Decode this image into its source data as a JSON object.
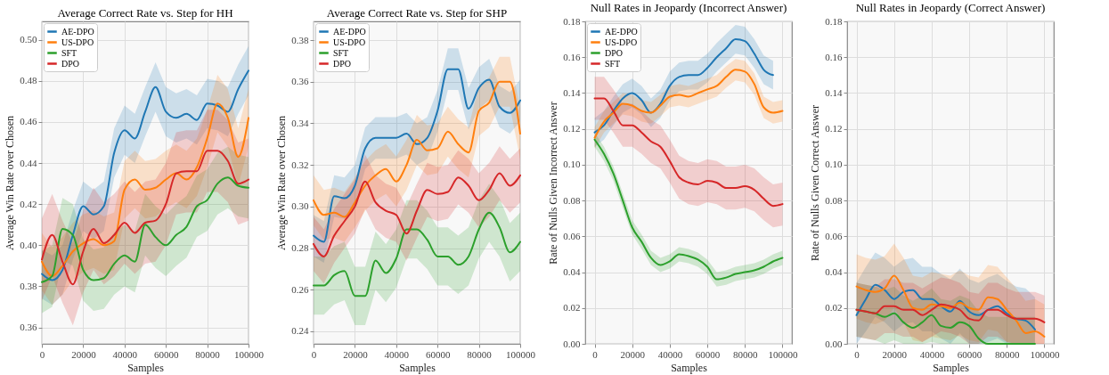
{
  "chart_data": [
    {
      "type": "line",
      "title": "Average Correct Rate vs. Step for HH",
      "xlabel": "Samples",
      "ylabel": "Average Win Rate over Chosen",
      "x": [
        0,
        5000,
        10000,
        15000,
        20000,
        25000,
        30000,
        35000,
        40000,
        45000,
        50000,
        55000,
        60000,
        65000,
        70000,
        75000,
        80000,
        85000,
        90000,
        95000,
        100000
      ],
      "xlim": [
        0,
        100000
      ],
      "xticks": [
        0,
        20000,
        40000,
        60000,
        80000,
        100000
      ],
      "ylim": [
        0.352,
        0.509
      ],
      "yticks": [
        0.36,
        0.38,
        {
          "value": 0.4,
          "label": "0.40"
        },
        0.42,
        0.44,
        0.46,
        0.48,
        {
          "value": 0.5,
          "label": "0.50"
        }
      ],
      "grid": true,
      "legend": "top left",
      "series": [
        {
          "name": "AE-DPO",
          "color": "#1f77b4",
          "values": [
            0.386,
            0.383,
            0.388,
            0.405,
            0.419,
            0.415,
            0.419,
            0.445,
            0.456,
            0.452,
            0.465,
            0.477,
            0.465,
            0.462,
            0.464,
            0.461,
            0.469,
            0.468,
            0.465,
            0.476,
            0.485
          ],
          "lower": [
            0.374,
            0.371,
            0.376,
            0.393,
            0.407,
            0.403,
            0.407,
            0.433,
            0.444,
            0.44,
            0.453,
            0.465,
            0.453,
            0.45,
            0.452,
            0.449,
            0.457,
            0.456,
            0.453,
            0.464,
            0.473
          ],
          "upper": [
            0.398,
            0.395,
            0.4,
            0.417,
            0.431,
            0.427,
            0.431,
            0.457,
            0.468,
            0.464,
            0.477,
            0.489,
            0.477,
            0.474,
            0.476,
            0.473,
            0.481,
            0.48,
            0.477,
            0.488,
            0.497
          ]
        },
        {
          "name": "US-DPO",
          "color": "#ff7f0e",
          "values": [
            0.392,
            0.385,
            0.39,
            0.397,
            0.401,
            0.403,
            0.4,
            0.402,
            0.427,
            0.432,
            0.427,
            0.428,
            0.432,
            0.435,
            0.432,
            0.438,
            0.452,
            0.469,
            0.462,
            0.443,
            0.462
          ],
          "lower": [
            0.378,
            0.371,
            0.376,
            0.383,
            0.387,
            0.389,
            0.386,
            0.388,
            0.413,
            0.418,
            0.413,
            0.414,
            0.418,
            0.421,
            0.418,
            0.424,
            0.438,
            0.455,
            0.448,
            0.429,
            0.448
          ],
          "upper": [
            0.406,
            0.399,
            0.404,
            0.411,
            0.415,
            0.417,
            0.414,
            0.416,
            0.441,
            0.446,
            0.441,
            0.442,
            0.446,
            0.449,
            0.446,
            0.452,
            0.466,
            0.483,
            0.476,
            0.457,
            0.476
          ]
        },
        {
          "name": "SFT",
          "color": "#2ca02c",
          "values": [
            0.382,
            0.385,
            0.408,
            0.405,
            0.388,
            0.383,
            0.384,
            0.391,
            0.395,
            0.392,
            0.41,
            0.404,
            0.4,
            0.405,
            0.409,
            0.419,
            0.422,
            0.43,
            0.433,
            0.429,
            0.428
          ],
          "lower": [
            0.367,
            0.37,
            0.393,
            0.39,
            0.373,
            0.368,
            0.369,
            0.376,
            0.38,
            0.377,
            0.395,
            0.389,
            0.385,
            0.39,
            0.394,
            0.404,
            0.407,
            0.415,
            0.418,
            0.414,
            0.413
          ],
          "upper": [
            0.397,
            0.4,
            0.423,
            0.42,
            0.403,
            0.398,
            0.399,
            0.406,
            0.41,
            0.407,
            0.425,
            0.419,
            0.415,
            0.42,
            0.424,
            0.434,
            0.437,
            0.445,
            0.448,
            0.444,
            0.443
          ]
        },
        {
          "name": "DPO",
          "color": "#d62728",
          "values": [
            0.393,
            0.405,
            0.392,
            0.381,
            0.397,
            0.408,
            0.401,
            0.405,
            0.411,
            0.406,
            0.411,
            0.412,
            0.42,
            0.435,
            0.436,
            0.436,
            0.446,
            0.446,
            0.441,
            0.43,
            0.432
          ],
          "lower": [
            0.373,
            0.385,
            0.372,
            0.361,
            0.377,
            0.388,
            0.381,
            0.385,
            0.391,
            0.386,
            0.391,
            0.392,
            0.4,
            0.415,
            0.416,
            0.416,
            0.426,
            0.426,
            0.421,
            0.41,
            0.412
          ],
          "upper": [
            0.413,
            0.425,
            0.412,
            0.401,
            0.417,
            0.428,
            0.421,
            0.425,
            0.431,
            0.426,
            0.431,
            0.432,
            0.44,
            0.455,
            0.456,
            0.456,
            0.466,
            0.466,
            0.461,
            0.45,
            0.452
          ]
        }
      ]
    },
    {
      "type": "line",
      "title": "Average Correct Rate vs. Step for SHP",
      "xlabel": "Samples",
      "ylabel": "Average Win Rate over Chosen",
      "x": [
        0,
        5000,
        10000,
        15000,
        20000,
        25000,
        30000,
        35000,
        40000,
        45000,
        50000,
        55000,
        60000,
        65000,
        70000,
        75000,
        80000,
        85000,
        90000,
        95000,
        100000
      ],
      "xlim": [
        0,
        100000
      ],
      "xticks": [
        0,
        20000,
        40000,
        60000,
        80000,
        100000
      ],
      "ylim": [
        0.234,
        0.389
      ],
      "yticks": [
        0.24,
        0.26,
        0.28,
        {
          "value": 0.3,
          "label": "0.30"
        },
        0.32,
        0.34,
        0.36,
        0.38
      ],
      "grid": true,
      "legend": "top left",
      "series": [
        {
          "name": "AE-DPO",
          "color": "#1f77b4",
          "values": [
            0.286,
            0.283,
            0.305,
            0.304,
            0.31,
            0.328,
            0.333,
            0.333,
            0.333,
            0.335,
            0.33,
            0.333,
            0.346,
            0.366,
            0.366,
            0.347,
            0.357,
            0.361,
            0.348,
            0.345,
            0.351
          ],
          "lower": [
            0.276,
            0.273,
            0.295,
            0.294,
            0.3,
            0.318,
            0.323,
            0.323,
            0.323,
            0.325,
            0.32,
            0.323,
            0.336,
            0.356,
            0.356,
            0.337,
            0.347,
            0.351,
            0.338,
            0.335,
            0.341
          ],
          "upper": [
            0.296,
            0.293,
            0.315,
            0.314,
            0.32,
            0.338,
            0.343,
            0.343,
            0.343,
            0.345,
            0.34,
            0.343,
            0.356,
            0.376,
            0.376,
            0.357,
            0.367,
            0.371,
            0.358,
            0.355,
            0.361
          ]
        },
        {
          "name": "US-DPO",
          "color": "#ff7f0e",
          "values": [
            0.303,
            0.296,
            0.297,
            0.295,
            0.302,
            0.31,
            0.315,
            0.318,
            0.312,
            0.32,
            0.332,
            0.327,
            0.328,
            0.336,
            0.33,
            0.326,
            0.346,
            0.35,
            0.36,
            0.36,
            0.335
          ],
          "lower": [
            0.291,
            0.284,
            0.285,
            0.283,
            0.29,
            0.298,
            0.303,
            0.306,
            0.3,
            0.308,
            0.32,
            0.315,
            0.316,
            0.324,
            0.318,
            0.314,
            0.334,
            0.338,
            0.348,
            0.348,
            0.323
          ],
          "upper": [
            0.315,
            0.308,
            0.309,
            0.307,
            0.314,
            0.322,
            0.327,
            0.33,
            0.324,
            0.332,
            0.344,
            0.339,
            0.34,
            0.348,
            0.342,
            0.338,
            0.358,
            0.362,
            0.372,
            0.372,
            0.347
          ]
        },
        {
          "name": "SFT",
          "color": "#2ca02c",
          "values": [
            0.262,
            0.262,
            0.267,
            0.269,
            0.257,
            0.257,
            0.274,
            0.268,
            0.275,
            0.289,
            0.289,
            0.284,
            0.276,
            0.276,
            0.272,
            0.276,
            0.289,
            0.297,
            0.29,
            0.278,
            0.283
          ],
          "lower": [
            0.248,
            0.248,
            0.253,
            0.255,
            0.243,
            0.243,
            0.26,
            0.254,
            0.261,
            0.275,
            0.275,
            0.27,
            0.262,
            0.262,
            0.258,
            0.262,
            0.275,
            0.283,
            0.276,
            0.264,
            0.269
          ],
          "upper": [
            0.276,
            0.276,
            0.281,
            0.283,
            0.271,
            0.271,
            0.288,
            0.282,
            0.289,
            0.303,
            0.303,
            0.298,
            0.29,
            0.29,
            0.286,
            0.29,
            0.303,
            0.311,
            0.304,
            0.292,
            0.297
          ]
        },
        {
          "name": "DPO",
          "color": "#d62728",
          "values": [
            0.282,
            0.276,
            0.286,
            0.293,
            0.3,
            0.312,
            0.302,
            0.298,
            0.296,
            0.287,
            0.298,
            0.308,
            0.306,
            0.307,
            0.314,
            0.31,
            0.303,
            0.308,
            0.316,
            0.31,
            0.315
          ],
          "lower": [
            0.269,
            0.263,
            0.273,
            0.28,
            0.287,
            0.299,
            0.289,
            0.285,
            0.283,
            0.274,
            0.285,
            0.295,
            0.293,
            0.294,
            0.301,
            0.297,
            0.29,
            0.295,
            0.303,
            0.297,
            0.302
          ],
          "upper": [
            0.295,
            0.289,
            0.299,
            0.306,
            0.313,
            0.325,
            0.315,
            0.311,
            0.309,
            0.3,
            0.311,
            0.321,
            0.319,
            0.32,
            0.327,
            0.323,
            0.316,
            0.321,
            0.329,
            0.323,
            0.328
          ]
        }
      ]
    },
    {
      "type": "line",
      "title": "Null Rates in Jeopardy (Incorrect Answer)",
      "xlabel": "Samples",
      "ylabel": "Rate of Nulls Given Incorrect Answer",
      "x": [
        0,
        5000,
        10000,
        15000,
        20000,
        25000,
        30000,
        35000,
        40000,
        45000,
        50000,
        55000,
        60000,
        65000,
        70000,
        75000,
        80000,
        85000,
        90000,
        95000,
        100000
      ],
      "xlim": [
        -5000,
        105000
      ],
      "xticks": [
        0,
        20000,
        40000,
        60000,
        80000,
        100000
      ],
      "ylim": [
        0,
        0.18
      ],
      "yticks": [
        {
          "value": 0,
          "label": "0.00"
        },
        0.02,
        0.04,
        0.06,
        0.08,
        {
          "value": 0.1,
          "label": "0.10"
        },
        0.12,
        0.14,
        0.16,
        0.18
      ],
      "grid": true,
      "legend": "top left",
      "series": [
        {
          "name": "AE-DPO",
          "color": "#1f77b4",
          "values": [
            0.118,
            0.122,
            0.13,
            0.137,
            0.14,
            0.136,
            0.129,
            0.134,
            0.144,
            0.149,
            0.15,
            0.15,
            0.154,
            0.16,
            0.165,
            0.17,
            0.169,
            0.162,
            0.153,
            0.15,
            null
          ],
          "lower": [
            0.11,
            0.114,
            0.122,
            0.129,
            0.132,
            0.128,
            0.121,
            0.126,
            0.136,
            0.141,
            0.142,
            0.142,
            0.146,
            0.152,
            0.157,
            0.162,
            0.161,
            0.154,
            0.145,
            0.142,
            null
          ],
          "upper": [
            0.126,
            0.13,
            0.138,
            0.145,
            0.148,
            0.144,
            0.137,
            0.142,
            0.152,
            0.157,
            0.158,
            0.158,
            0.162,
            0.168,
            0.173,
            0.178,
            0.177,
            0.17,
            0.161,
            0.158,
            null
          ]
        },
        {
          "name": "US-DPO",
          "color": "#ff7f0e",
          "values": [
            0.115,
            0.124,
            0.129,
            0.134,
            0.133,
            0.13,
            0.129,
            0.133,
            0.138,
            0.139,
            0.138,
            0.14,
            0.142,
            0.144,
            0.149,
            0.153,
            0.152,
            0.145,
            0.132,
            0.129,
            0.13
          ],
          "lower": [
            0.109,
            0.118,
            0.123,
            0.128,
            0.127,
            0.124,
            0.123,
            0.127,
            0.132,
            0.133,
            0.132,
            0.134,
            0.136,
            0.138,
            0.143,
            0.147,
            0.146,
            0.139,
            0.126,
            0.123,
            0.124
          ],
          "upper": [
            0.121,
            0.13,
            0.135,
            0.14,
            0.139,
            0.136,
            0.135,
            0.139,
            0.144,
            0.145,
            0.144,
            0.146,
            0.148,
            0.15,
            0.155,
            0.159,
            0.158,
            0.151,
            0.138,
            0.135,
            0.136
          ]
        },
        {
          "name": "DPO",
          "color": "#2ca02c",
          "values": [
            0.114,
            0.106,
            0.095,
            0.08,
            0.065,
            0.057,
            0.048,
            0.044,
            0.046,
            0.05,
            0.049,
            0.047,
            0.043,
            0.036,
            0.037,
            0.039,
            0.04,
            0.041,
            0.043,
            0.046,
            0.048
          ],
          "lower": [
            0.11,
            0.102,
            0.091,
            0.076,
            0.061,
            0.053,
            0.044,
            0.04,
            0.042,
            0.046,
            0.045,
            0.043,
            0.039,
            0.032,
            0.033,
            0.035,
            0.036,
            0.037,
            0.039,
            0.042,
            0.044
          ],
          "upper": [
            0.118,
            0.11,
            0.099,
            0.084,
            0.069,
            0.061,
            0.052,
            0.048,
            0.05,
            0.054,
            0.053,
            0.051,
            0.047,
            0.04,
            0.041,
            0.043,
            0.044,
            0.045,
            0.047,
            0.05,
            0.052
          ]
        },
        {
          "name": "SFT",
          "color": "#d62728",
          "values": [
            0.137,
            0.137,
            0.13,
            0.122,
            0.122,
            0.118,
            0.113,
            0.11,
            0.102,
            0.093,
            0.09,
            0.089,
            0.091,
            0.09,
            0.087,
            0.087,
            0.088,
            0.086,
            0.081,
            0.077,
            0.078
          ],
          "lower": [
            0.125,
            0.125,
            0.118,
            0.11,
            0.11,
            0.106,
            0.101,
            0.098,
            0.09,
            0.081,
            0.078,
            0.077,
            0.079,
            0.078,
            0.075,
            0.075,
            0.076,
            0.074,
            0.069,
            0.065,
            0.066
          ],
          "upper": [
            0.149,
            0.149,
            0.142,
            0.134,
            0.134,
            0.13,
            0.125,
            0.122,
            0.114,
            0.105,
            0.102,
            0.101,
            0.103,
            0.102,
            0.099,
            0.099,
            0.1,
            0.098,
            0.093,
            0.089,
            0.09
          ]
        }
      ]
    },
    {
      "type": "line",
      "title": "Null Rates in Jeopardy (Correct Answer)",
      "xlabel": "Samples",
      "ylabel": "Rate of Nulls Given Correct Answer",
      "x": [
        0,
        5000,
        10000,
        15000,
        20000,
        25000,
        30000,
        35000,
        40000,
        45000,
        50000,
        55000,
        60000,
        65000,
        70000,
        75000,
        80000,
        85000,
        90000,
        95000,
        100000
      ],
      "xlim": [
        -5000,
        105000
      ],
      "xticks": [
        0,
        20000,
        40000,
        60000,
        80000,
        100000
      ],
      "ylim": [
        0,
        0.18
      ],
      "yticks": [
        {
          "value": 0,
          "label": "0.00"
        },
        0.02,
        0.04,
        0.06,
        0.08,
        {
          "value": 0.1,
          "label": "0.10"
        },
        0.12,
        0.14,
        0.16,
        0.18
      ],
      "grid": true,
      "legend": false,
      "series": [
        {
          "color": "#1f77b4",
          "values": [
            0.016,
            0.025,
            0.033,
            0.03,
            0.025,
            0.029,
            0.03,
            0.025,
            0.025,
            0.021,
            0.018,
            0.024,
            0.018,
            0.016,
            0.019,
            0.021,
            0.017,
            0.014,
            0.013,
            0.008,
            null
          ],
          "lower": [
            0,
            0.007,
            0.015,
            0.012,
            0.007,
            0.011,
            0.012,
            0.007,
            0.007,
            0.003,
            0,
            0.006,
            0,
            0,
            0.001,
            0.003,
            0,
            0,
            0,
            0,
            null
          ],
          "upper": [
            0.034,
            0.043,
            0.051,
            0.048,
            0.043,
            0.047,
            0.048,
            0.043,
            0.043,
            0.039,
            0.036,
            0.042,
            0.036,
            0.034,
            0.037,
            0.039,
            0.035,
            0.032,
            0.031,
            0.026,
            null
          ]
        },
        {
          "color": "#ff7f0e",
          "values": [
            0.032,
            0.03,
            0.029,
            0.031,
            0.038,
            0.03,
            0.02,
            0.019,
            0.022,
            0.021,
            0.02,
            0.023,
            0.02,
            0.019,
            0.026,
            0.025,
            0.019,
            0.013,
            0.006,
            0.007,
            0.004
          ],
          "lower": [
            0.014,
            0.012,
            0.011,
            0.013,
            0.02,
            0.012,
            0.002,
            0.001,
            0.004,
            0.003,
            0.002,
            0.005,
            0.002,
            0.001,
            0.008,
            0.007,
            0.001,
            0,
            0,
            0,
            0
          ],
          "upper": [
            0.05,
            0.048,
            0.047,
            0.049,
            0.056,
            0.048,
            0.038,
            0.037,
            0.04,
            0.039,
            0.038,
            0.041,
            0.038,
            0.037,
            0.044,
            0.043,
            0.037,
            0.031,
            0.024,
            0.025,
            0.022
          ]
        },
        {
          "color": "#2ca02c",
          "values": [
            0.019,
            0.018,
            0.017,
            0.015,
            0.017,
            0.012,
            0.009,
            0.012,
            0.016,
            0.01,
            0.009,
            0.012,
            0.01,
            0.003,
            0,
            0,
            0,
            0,
            0,
            0,
            null
          ],
          "lower": [
            0.004,
            0.003,
            0.002,
            0,
            0.002,
            0,
            0,
            0,
            0.001,
            0,
            0,
            0,
            0,
            0,
            0,
            0,
            0,
            0,
            0,
            0,
            null
          ],
          "upper": [
            0.034,
            0.033,
            0.032,
            0.03,
            0.032,
            0.027,
            0.024,
            0.027,
            0.031,
            0.025,
            0.024,
            0.027,
            0.025,
            0.018,
            0.015,
            0.015,
            0.015,
            0.015,
            0.015,
            0.015,
            null
          ]
        },
        {
          "color": "#d62728",
          "values": [
            0.019,
            0.018,
            0.017,
            0.021,
            0.021,
            0.019,
            0.019,
            0.016,
            0.019,
            0.022,
            0.021,
            0.019,
            0.014,
            0.013,
            0.019,
            0.019,
            0.016,
            0.014,
            0.014,
            0.014,
            0.012
          ],
          "lower": [
            0.004,
            0.003,
            0.002,
            0.006,
            0.006,
            0.004,
            0.004,
            0.001,
            0.004,
            0.007,
            0.006,
            0.004,
            0,
            0,
            0.004,
            0.004,
            0.001,
            0,
            0,
            0,
            0
          ],
          "upper": [
            0.034,
            0.033,
            0.032,
            0.036,
            0.036,
            0.034,
            0.034,
            0.031,
            0.034,
            0.037,
            0.036,
            0.034,
            0.029,
            0.028,
            0.034,
            0.034,
            0.031,
            0.029,
            0.029,
            0.029,
            0.027
          ]
        }
      ]
    }
  ]
}
